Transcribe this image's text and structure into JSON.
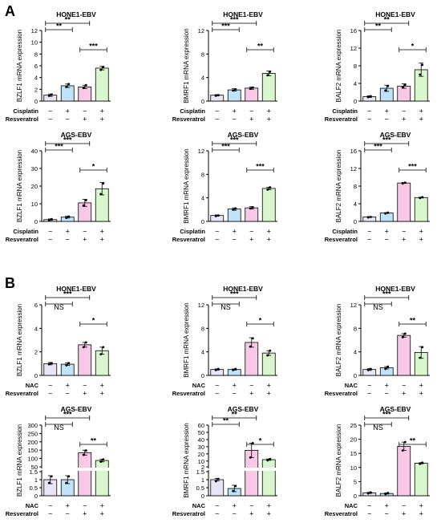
{
  "panels": [
    {
      "letter": "A"
    },
    {
      "letter": "B"
    }
  ],
  "colors": {
    "bar1": "#e6e6f7",
    "bar2": "#bfe4fa",
    "bar3": "#f7c9e7",
    "bar4": "#d9f7cc",
    "stroke": "#000000"
  },
  "chart_data": [
    {
      "panel": "A",
      "type": "bar",
      "title": "HONE1-EBV",
      "ylabel": "BZLF1 mRNA expression",
      "yticks": [
        0,
        2,
        4,
        6,
        8,
        10,
        12
      ],
      "ylim": [
        0,
        12
      ],
      "values": [
        1.0,
        2.6,
        2.4,
        5.6
      ],
      "errors": [
        0.2,
        0.3,
        0.3,
        0.3
      ],
      "points": [
        [
          0.9,
          1.1
        ],
        [
          2.4,
          2.9
        ],
        [
          2.3,
          2.7
        ],
        [
          5.3,
          5.8
        ]
      ],
      "rows": [
        {
          "label": "Cisplatin",
          "signs": [
            "−",
            "+",
            "−",
            "+"
          ]
        },
        {
          "label": "Resveratrol",
          "signs": [
            "−",
            "−",
            "+",
            "+"
          ]
        }
      ],
      "comparisons": [
        {
          "from": 0,
          "to": 2,
          "text": "**"
        },
        {
          "from": 0,
          "to": 1,
          "text": "**"
        },
        {
          "from": 2,
          "to": 3,
          "text": "***"
        }
      ]
    },
    {
      "panel": "A",
      "type": "bar",
      "title": "HONE1-EBV",
      "ylabel": "BMRF1 mRNA expression",
      "yticks": [
        0,
        4,
        8,
        12
      ],
      "ylim": [
        0,
        12
      ],
      "values": [
        1.0,
        1.9,
        2.2,
        4.7
      ],
      "errors": [
        0.1,
        0.2,
        0.2,
        0.4
      ],
      "points": [
        [
          0.9,
          1.0
        ],
        [
          1.8,
          2.0
        ],
        [
          2.1,
          2.3
        ],
        [
          4.4,
          5.0
        ]
      ],
      "rows": [
        {
          "label": "Cisplatin",
          "signs": [
            "−",
            "+",
            "−",
            "+"
          ]
        },
        {
          "label": "Resveratrol",
          "signs": [
            "−",
            "−",
            "+",
            "+"
          ]
        }
      ],
      "comparisons": [
        {
          "from": 0,
          "to": 2,
          "text": "***"
        },
        {
          "from": 0,
          "to": 1,
          "text": "***"
        },
        {
          "from": 2,
          "to": 3,
          "text": "**"
        }
      ]
    },
    {
      "panel": "A",
      "type": "bar",
      "title": "HONE1-EBV",
      "ylabel": "BALF2 mRNA expression",
      "yticks": [
        0,
        4,
        8,
        12,
        16
      ],
      "ylim": [
        0,
        16
      ],
      "values": [
        1.0,
        2.9,
        3.4,
        7.1
      ],
      "errors": [
        0.2,
        0.7,
        0.5,
        1.5
      ],
      "points": [
        [
          0.9,
          1.1
        ],
        [
          2.4,
          3.4
        ],
        [
          3.1,
          3.7
        ],
        [
          6.0,
          8.2
        ]
      ],
      "rows": [
        {
          "label": "Cisplatin",
          "signs": [
            "−",
            "+",
            "−",
            "+"
          ]
        },
        {
          "label": "Resveratrol",
          "signs": [
            "−",
            "−",
            "+",
            "+"
          ]
        }
      ],
      "comparisons": [
        {
          "from": 0,
          "to": 2,
          "text": "**"
        },
        {
          "from": 0,
          "to": 1,
          "text": "**"
        },
        {
          "from": 2,
          "to": 3,
          "text": "*"
        }
      ]
    },
    {
      "panel": "A",
      "type": "bar",
      "title": "AGS-EBV",
      "ylabel": "BZLF1 mRNA expression",
      "yticks": [
        0,
        10,
        20,
        30,
        40
      ],
      "ylim": [
        0,
        40
      ],
      "values": [
        1.0,
        2.4,
        10.5,
        18.5
      ],
      "errors": [
        0.4,
        0.5,
        2.0,
        3.5
      ],
      "points": [
        [
          0.7,
          1.3
        ],
        [
          2.0,
          2.8
        ],
        [
          9.0,
          12.0
        ],
        [
          15.5,
          21.5
        ]
      ],
      "rows": [
        {
          "label": "Cisplatin",
          "signs": [
            "−",
            "+",
            "−",
            "+"
          ]
        },
        {
          "label": "Resveratrol",
          "signs": [
            "−",
            "−",
            "+",
            "+"
          ]
        }
      ],
      "comparisons": [
        {
          "from": 0,
          "to": 2,
          "text": "***"
        },
        {
          "from": 0,
          "to": 1,
          "text": "***"
        },
        {
          "from": 2,
          "to": 3,
          "text": "*"
        }
      ]
    },
    {
      "panel": "A",
      "type": "bar",
      "title": "AGS-EBV",
      "ylabel": "BMRF1 mRNA expression",
      "yticks": [
        0,
        4,
        8,
        12
      ],
      "ylim": [
        0,
        12
      ],
      "values": [
        1.0,
        2.1,
        2.3,
        5.6
      ],
      "errors": [
        0.1,
        0.2,
        0.2,
        0.2
      ],
      "points": [
        [
          0.9,
          1.0
        ],
        [
          2.0,
          2.2
        ],
        [
          2.2,
          2.4
        ],
        [
          5.4,
          5.8
        ]
      ],
      "rows": [
        {
          "label": "Cisplatin",
          "signs": [
            "−",
            "+",
            "−",
            "+"
          ]
        },
        {
          "label": "Resveratrol",
          "signs": [
            "−",
            "−",
            "+",
            "+"
          ]
        }
      ],
      "comparisons": [
        {
          "from": 0,
          "to": 2,
          "text": "***"
        },
        {
          "from": 0,
          "to": 1,
          "text": "***"
        },
        {
          "from": 2,
          "to": 3,
          "text": "***"
        }
      ]
    },
    {
      "panel": "A",
      "type": "bar",
      "title": "AGS-EBV",
      "ylabel": "BALF2 mRNA expression",
      "yticks": [
        0,
        4,
        8,
        12,
        16
      ],
      "ylim": [
        0,
        16
      ],
      "values": [
        1.0,
        1.9,
        8.7,
        5.4
      ],
      "errors": [
        0.1,
        0.1,
        0.1,
        0.1
      ],
      "points": [
        [
          0.9,
          1.0
        ],
        [
          1.8,
          2.0
        ],
        [
          8.6,
          8.8
        ],
        [
          5.3,
          5.5
        ]
      ],
      "rows": [
        {
          "label": "Cisplatin",
          "signs": [
            "−",
            "+",
            "−",
            "+"
          ]
        },
        {
          "label": "Resveratrol",
          "signs": [
            "−",
            "−",
            "+",
            "+"
          ]
        }
      ],
      "comparisons": [
        {
          "from": 0,
          "to": 2,
          "text": "***"
        },
        {
          "from": 0,
          "to": 1,
          "text": "***"
        },
        {
          "from": 2,
          "to": 3,
          "text": "***"
        }
      ]
    },
    {
      "panel": "B",
      "type": "bar",
      "title": "HONE1-EBV",
      "ylabel": "BZLF1 mRNA expression",
      "yticks": [
        0,
        2,
        4,
        6
      ],
      "ylim": [
        0,
        6
      ],
      "values": [
        1.0,
        0.95,
        2.6,
        2.1
      ],
      "errors": [
        0.1,
        0.1,
        0.2,
        0.3
      ],
      "points": [
        [
          0.95,
          1.05
        ],
        [
          0.85,
          1.05
        ],
        [
          2.4,
          2.8
        ],
        [
          1.8,
          2.4
        ]
      ],
      "rows": [
        {
          "label": "NAC",
          "signs": [
            "−",
            "+",
            "−",
            "+"
          ]
        },
        {
          "label": "Resveratrol",
          "signs": [
            "−",
            "−",
            "+",
            "+"
          ]
        }
      ],
      "comparisons": [
        {
          "from": 0,
          "to": 2,
          "text": "***"
        },
        {
          "from": 0,
          "to": 1,
          "text": "NS"
        },
        {
          "from": 2,
          "to": 3,
          "text": "*"
        }
      ]
    },
    {
      "panel": "B",
      "type": "bar",
      "title": "HONE1-EBV",
      "ylabel": "BMRF1 mRNA expression",
      "yticks": [
        0,
        4,
        8,
        12
      ],
      "ylim": [
        0,
        12
      ],
      "values": [
        1.0,
        1.0,
        5.6,
        3.8
      ],
      "errors": [
        0.1,
        0.1,
        0.8,
        0.4
      ],
      "points": [
        [
          0.9,
          1.1
        ],
        [
          0.9,
          1.1
        ],
        [
          4.9,
          6.3
        ],
        [
          3.4,
          4.2
        ]
      ],
      "rows": [
        {
          "label": "NAC",
          "signs": [
            "−",
            "+",
            "−",
            "+"
          ]
        },
        {
          "label": "Resveratrol",
          "signs": [
            "−",
            "−",
            "+",
            "+"
          ]
        }
      ],
      "comparisons": [
        {
          "from": 0,
          "to": 2,
          "text": "***"
        },
        {
          "from": 0,
          "to": 1,
          "text": "NS"
        },
        {
          "from": 2,
          "to": 3,
          "text": "*"
        }
      ]
    },
    {
      "panel": "B",
      "type": "bar",
      "title": "HONE1-EBV",
      "ylabel": "BALF2 mRNA expression",
      "yticks": [
        0,
        4,
        8,
        12
      ],
      "ylim": [
        0,
        12
      ],
      "values": [
        1.0,
        1.3,
        6.8,
        3.9
      ],
      "errors": [
        0.15,
        0.2,
        0.3,
        1.0
      ],
      "points": [
        [
          0.9,
          1.1
        ],
        [
          1.1,
          1.5
        ],
        [
          6.5,
          7.1
        ],
        [
          3.0,
          4.8
        ]
      ],
      "rows": [
        {
          "label": "NAC",
          "signs": [
            "−",
            "+",
            "−",
            "+"
          ]
        },
        {
          "label": "Resveratrol",
          "signs": [
            "−",
            "−",
            "+",
            "+"
          ]
        }
      ],
      "comparisons": [
        {
          "from": 0,
          "to": 2,
          "text": "***"
        },
        {
          "from": 0,
          "to": 1,
          "text": "NS"
        },
        {
          "from": 2,
          "to": 3,
          "text": "**"
        }
      ]
    },
    {
      "panel": "B",
      "type": "bar",
      "title": "AGS-EBV",
      "ylabel": "BZLF1 mRNA expression",
      "broken": true,
      "lower_ticks": [
        0,
        0.5,
        1.0,
        1.5
      ],
      "lower_ylim": [
        0,
        1.5
      ],
      "upper_ticks": [
        50,
        100,
        150,
        200,
        250,
        300
      ],
      "upper_ylim": [
        50,
        300
      ],
      "values": [
        1.0,
        1.0,
        135,
        88
      ],
      "errors": [
        0.25,
        0.25,
        15,
        8
      ],
      "points": [
        [
          0.8,
          1.2
        ],
        [
          0.8,
          1.2
        ],
        [
          122,
          148
        ],
        [
          81,
          95
        ]
      ],
      "rows": [
        {
          "label": "NAC",
          "signs": [
            "−",
            "+",
            "−",
            "+"
          ]
        },
        {
          "label": "Resveratrol",
          "signs": [
            "−",
            "−",
            "+",
            "+"
          ]
        }
      ],
      "comparisons": [
        {
          "from": 0,
          "to": 2,
          "text": "***"
        },
        {
          "from": 0,
          "to": 1,
          "text": "NS"
        },
        {
          "from": 2,
          "to": 3,
          "text": "**"
        }
      ]
    },
    {
      "panel": "B",
      "type": "bar",
      "title": "AGS-EBV",
      "ylabel": "BMRF1 mRNA expression",
      "broken": true,
      "lower_ticks": [
        0,
        0.5,
        1.0,
        1.5
      ],
      "lower_ylim": [
        0,
        1.5
      ],
      "upper_ticks": [
        2,
        10,
        20,
        30,
        40,
        50,
        60
      ],
      "upper_ylim": [
        2,
        60
      ],
      "values": [
        1.0,
        0.45,
        25,
        12
      ],
      "errors": [
        0.08,
        0.2,
        10,
        1
      ],
      "points": [
        [
          0.9,
          1.05
        ],
        [
          0.3,
          0.6
        ],
        [
          15,
          35
        ],
        [
          11,
          13
        ]
      ],
      "rows": [
        {
          "label": "NAC",
          "signs": [
            "−",
            "+",
            "−",
            "+"
          ]
        },
        {
          "label": "Resveratrol",
          "signs": [
            "−",
            "−",
            "+",
            "+"
          ]
        }
      ],
      "comparisons": [
        {
          "from": 0,
          "to": 2,
          "text": "**"
        },
        {
          "from": 0,
          "to": 1,
          "text": "**"
        },
        {
          "from": 2,
          "to": 3,
          "text": "*"
        }
      ]
    },
    {
      "panel": "B",
      "type": "bar",
      "title": "AGS-EBV",
      "ylabel": "BALF2 mRNA expression",
      "yticks": [
        0,
        5,
        10,
        15,
        20,
        25
      ],
      "ylim": [
        0,
        25
      ],
      "values": [
        1.0,
        0.8,
        17.5,
        11.5
      ],
      "errors": [
        0.2,
        0.2,
        1.5,
        0.2
      ],
      "points": [
        [
          0.8,
          1.2
        ],
        [
          0.6,
          1.0
        ],
        [
          16.0,
          19.0
        ],
        [
          11.3,
          11.7
        ]
      ],
      "rows": [
        {
          "label": "NAC",
          "signs": [
            "−",
            "+",
            "−",
            "+"
          ]
        },
        {
          "label": "Resveratrol",
          "signs": [
            "−",
            "−",
            "+",
            "+"
          ]
        }
      ],
      "comparisons": [
        {
          "from": 0,
          "to": 2,
          "text": "***"
        },
        {
          "from": 0,
          "to": 1,
          "text": "NS"
        },
        {
          "from": 2,
          "to": 3,
          "text": "**"
        }
      ]
    }
  ]
}
